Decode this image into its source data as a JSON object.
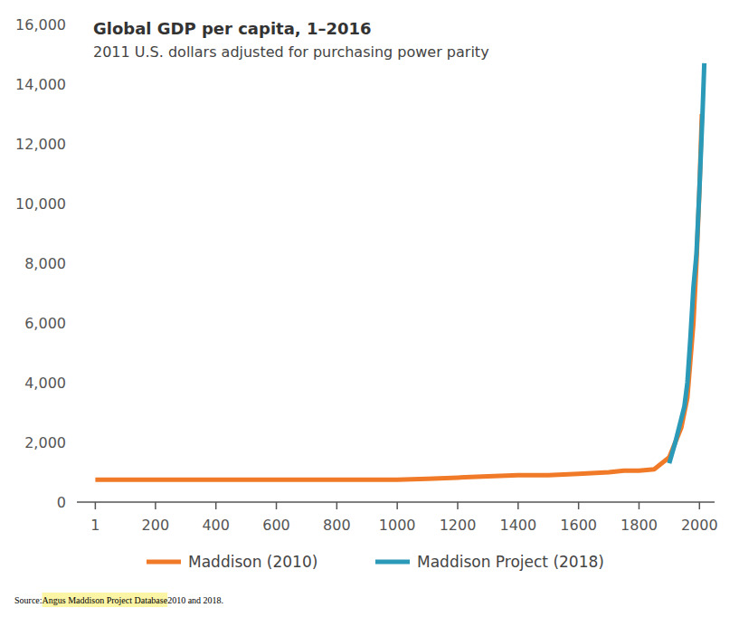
{
  "chart_data": {
    "type": "line",
    "title": "Global GDP per capita, 1–2016",
    "subtitle": "2011 U.S. dollars adjusted for purchasing power parity",
    "xlim": [
      -60,
      2050
    ],
    "xticks": [
      1,
      200,
      400,
      600,
      800,
      1000,
      1200,
      1400,
      1600,
      1800,
      2000
    ],
    "ylim": [
      0,
      16000
    ],
    "yticks": [
      0,
      {
        "value": 2000,
        "label": "2,000"
      },
      {
        "value": 4000,
        "label": "4,000"
      },
      {
        "value": 6000,
        "label": "6,000"
      },
      {
        "value": 8000,
        "label": "8,000"
      },
      {
        "value": 10000,
        "label": "10,000"
      },
      {
        "value": 12000,
        "label": "12,000"
      },
      {
        "value": 14000,
        "label": "14,000"
      },
      {
        "value": 16000,
        "label": "16,000"
      }
    ],
    "grid": false,
    "legend": "bottom",
    "series": [
      {
        "name": "Maddison (2010)",
        "color": "#f07a28",
        "x": [
          1,
          1000,
          1100,
          1200,
          1300,
          1400,
          1500,
          1600,
          1700,
          1750,
          1800,
          1850,
          1900,
          1940,
          1960,
          1980,
          1990,
          2000,
          2008
        ],
        "values": [
          750,
          750,
          780,
          820,
          860,
          900,
          900,
          950,
          1000,
          1050,
          1050,
          1100,
          1500,
          2500,
          3500,
          6000,
          8000,
          10500,
          13000
        ]
      },
      {
        "name": "Maddison Project (2018)",
        "color": "#2a9ab8",
        "x": [
          1900,
          1920,
          1950,
          1960,
          1970,
          1980,
          1990,
          2000,
          2010,
          2016
        ],
        "values": [
          1300,
          2000,
          3200,
          4000,
          5500,
          7200,
          8300,
          10500,
          13000,
          14700
        ]
      }
    ],
    "source": {
      "prefix": "Source: ",
      "link": "Angus Maddison Project Database",
      "suffix": " 2010 and 2018."
    }
  }
}
